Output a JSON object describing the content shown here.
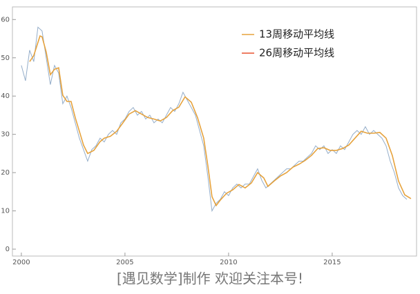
{
  "chart_data": {
    "type": "line",
    "caption": "[遇见数学]制作   欢迎关注本号!",
    "xlim": [
      1999.57,
      2019.07
    ],
    "xticks": [
      2000,
      2005,
      2010,
      2015
    ],
    "ylim": [
      -1.8,
      63.3
    ],
    "yticks": [
      0,
      10,
      20,
      30,
      40,
      50,
      60
    ],
    "legend": "top-right",
    "series": [
      {
        "color": "#94adc9",
        "x": [
          2000.0,
          2000.2,
          2000.4,
          2000.6,
          2000.8,
          2001.0,
          2001.2,
          2001.4,
          2001.6,
          2001.8,
          2002.0,
          2002.2,
          2002.4,
          2002.6,
          2002.8,
          2003.0,
          2003.2,
          2003.4,
          2003.6,
          2003.8,
          2004.0,
          2004.2,
          2004.4,
          2004.6,
          2004.8,
          2005.0,
          2005.2,
          2005.4,
          2005.6,
          2005.8,
          2006.0,
          2006.2,
          2006.4,
          2006.6,
          2006.8,
          2007.0,
          2007.2,
          2007.4,
          2007.6,
          2007.8,
          2008.0,
          2008.2,
          2008.4,
          2008.6,
          2008.8,
          2009.0,
          2009.2,
          2009.4,
          2009.6,
          2009.8,
          2010.0,
          2010.2,
          2010.4,
          2010.6,
          2010.8,
          2011.0,
          2011.2,
          2011.4,
          2011.6,
          2011.8,
          2012.0,
          2012.2,
          2012.4,
          2012.6,
          2012.8,
          2013.0,
          2013.2,
          2013.4,
          2013.6,
          2013.8,
          2014.0,
          2014.2,
          2014.4,
          2014.6,
          2014.8,
          2015.0,
          2015.2,
          2015.4,
          2015.6,
          2015.8,
          2016.0,
          2016.2,
          2016.4,
          2016.6,
          2016.8,
          2017.0,
          2017.2,
          2017.4,
          2017.6,
          2017.8,
          2018.0,
          2018.2,
          2018.4,
          2018.6
        ],
        "values": [
          48,
          44,
          52,
          49,
          58,
          57,
          50,
          43,
          48,
          46,
          38,
          40,
          37,
          33,
          29,
          26,
          23,
          26,
          27,
          29,
          28,
          30,
          31,
          30,
          33,
          34,
          36,
          37,
          35,
          36,
          34,
          35,
          33,
          34,
          33,
          35,
          37,
          36,
          38,
          41,
          39,
          37,
          35,
          31,
          27,
          19,
          10,
          12,
          13,
          15,
          14,
          16,
          17,
          16,
          17,
          17,
          19,
          21,
          18,
          16,
          17,
          18,
          19,
          20,
          21,
          21,
          22,
          23,
          23,
          24,
          25,
          27,
          26,
          27,
          25,
          26,
          25,
          27,
          26,
          28,
          30,
          31,
          30,
          32,
          30,
          31,
          30,
          29,
          27,
          23,
          20,
          16,
          14,
          13
        ]
      },
      {
        "name": "13周移动平均线",
        "color": "#e6a23c",
        "x": [
          2000.4,
          2000.6,
          2000.9,
          2001.0,
          2001.2,
          2001.4,
          2001.6,
          2001.8,
          2002.0,
          2002.2,
          2002.4,
          2002.6,
          2002.8,
          2003.0,
          2003.2,
          2003.5,
          2003.8,
          2004.0,
          2004.3,
          2004.6,
          2004.9,
          2005.2,
          2005.5,
          2005.8,
          2006.1,
          2006.4,
          2006.7,
          2007.0,
          2007.3,
          2007.6,
          2007.9,
          2008.2,
          2008.5,
          2008.8,
          2009.0,
          2009.2,
          2009.4,
          2009.6,
          2009.9,
          2010.2,
          2010.5,
          2010.8,
          2011.1,
          2011.4,
          2011.7,
          2011.9,
          2012.2,
          2012.5,
          2012.8,
          2013.1,
          2013.4,
          2013.7,
          2014.0,
          2014.3,
          2014.6,
          2014.9,
          2015.2,
          2015.5,
          2015.8,
          2016.1,
          2016.4,
          2016.7,
          2017.0,
          2017.3,
          2017.6,
          2017.9,
          2018.2,
          2018.5,
          2018.8
        ],
        "values": [
          49,
          50.6,
          55.7,
          55.5,
          51.5,
          45.6,
          47,
          47.4,
          40.2,
          38.6,
          38.6,
          34.4,
          30.8,
          27.2,
          25,
          25.8,
          28.1,
          29,
          29.5,
          30.8,
          33,
          35.3,
          36.2,
          35.3,
          34.4,
          34,
          33.5,
          34.4,
          36.2,
          37.1,
          39.8,
          38.4,
          34.4,
          29,
          21.8,
          13.7,
          11.4,
          12.8,
          14.6,
          15.5,
          16.9,
          16,
          17.3,
          20,
          18.6,
          16.4,
          17.8,
          19.1,
          20,
          21.4,
          22.2,
          23.2,
          24.5,
          26.3,
          26.5,
          25.8,
          25.8,
          26.3,
          27.2,
          29,
          30.8,
          30.3,
          30.3,
          30.5,
          29,
          24.5,
          17.8,
          14.2,
          13.2
        ]
      },
      {
        "name": "26周移动平均线",
        "color": "#e8502f"
      }
    ]
  }
}
